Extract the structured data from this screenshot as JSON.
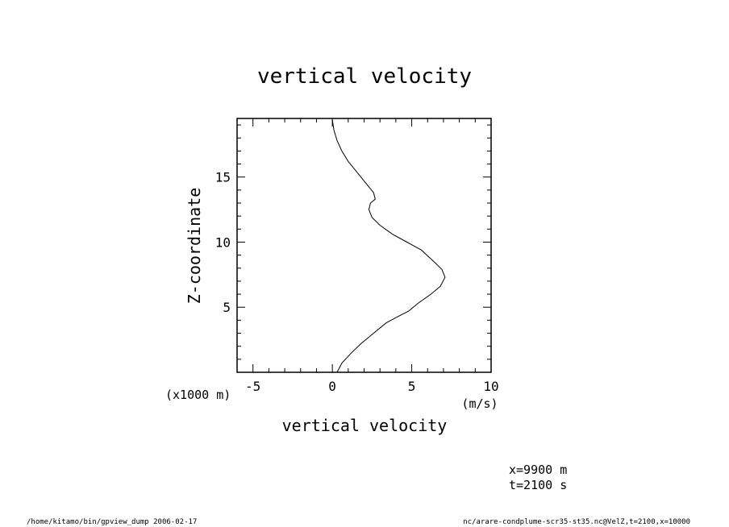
{
  "chart_data": {
    "type": "line",
    "title": "vertical velocity",
    "xlabel": "vertical velocity",
    "xunit": "(m/s)",
    "ylabel": "Z-coordinate",
    "yunit": "(x1000 m)",
    "xlim": [
      -6,
      10
    ],
    "ylim": [
      0,
      19.5
    ],
    "x_ticks": [
      -5,
      0,
      5,
      10
    ],
    "y_ticks": [
      5,
      10,
      15
    ],
    "grid": false,
    "series": [
      {
        "x": [
          0.3,
          0.6,
          1.2,
          1.8,
          2.6,
          3.4,
          4.0,
          4.8,
          5.4,
          6.2,
          6.8,
          7.1,
          6.9,
          6.4,
          5.6,
          4.7,
          3.8,
          3.0,
          2.5,
          2.3,
          2.4,
          2.7,
          2.6,
          2.2,
          1.6,
          1.0,
          0.6,
          0.3,
          0.1,
          0.0
        ],
        "y": [
          0.0,
          0.7,
          1.5,
          2.2,
          3.0,
          3.8,
          4.2,
          4.7,
          5.3,
          6.0,
          6.6,
          7.3,
          7.9,
          8.5,
          9.4,
          10.0,
          10.6,
          11.3,
          11.9,
          12.5,
          13.0,
          13.3,
          13.8,
          14.4,
          15.3,
          16.2,
          17.0,
          17.8,
          18.6,
          19.4
        ]
      }
    ]
  },
  "annotations": {
    "x_info": "x=9900 m",
    "t_info": "t=2100 s"
  },
  "footer": {
    "left": "/home/kitamo/bin/gpview_dump  2006-02-17",
    "right": "nc/arare-condplume-scr35-st35.nc@VelZ,t=2100,x=10000"
  }
}
